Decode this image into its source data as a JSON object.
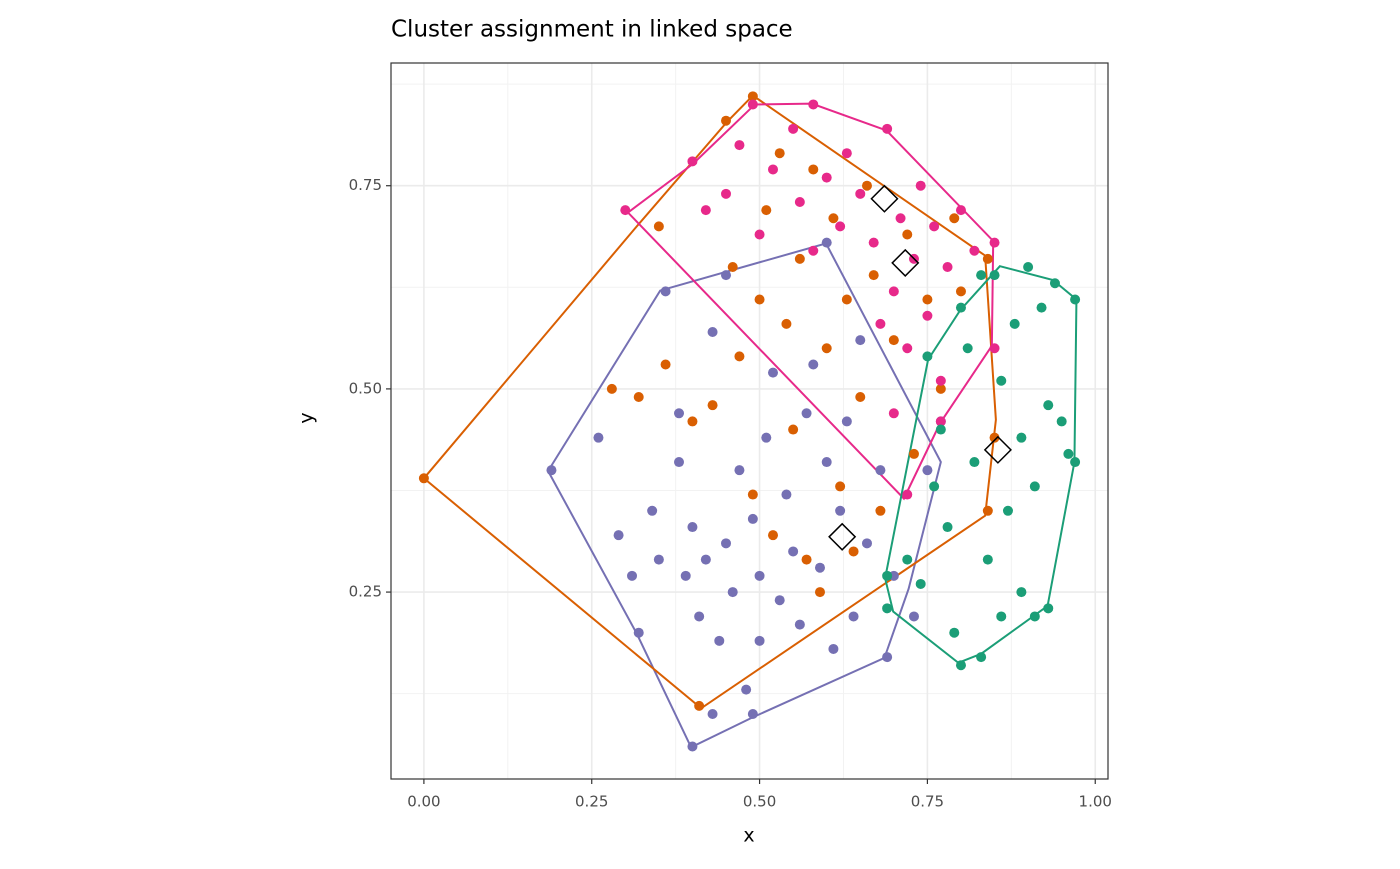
{
  "chart_data": {
    "type": "scatter",
    "title": "Cluster assignment in linked space",
    "x_label": "x",
    "y_label": "y",
    "xlim": [
      -0.049,
      1.019
    ],
    "ylim": [
      0.02,
      0.901
    ],
    "xticks": [
      {
        "value": 0,
        "label": "0.00"
      },
      0.25,
      {
        "value": 0.5,
        "label": "0.50"
      },
      0.75,
      {
        "value": 1,
        "label": "1.00"
      }
    ],
    "yticks": [
      0.25,
      {
        "value": 0.5,
        "label": "0.50"
      },
      0.75
    ],
    "xminor": [
      0.125,
      0.375,
      0.625,
      0.875
    ],
    "yminor": [
      0.125,
      0.375,
      0.625,
      0.875
    ],
    "grid": true,
    "series": [
      {
        "color": "#7570b3",
        "x": [
          0.19,
          0.26,
          0.29,
          0.31,
          0.32,
          0.34,
          0.35,
          0.36,
          0.38,
          0.38,
          0.39,
          0.4,
          0.4,
          0.41,
          0.42,
          0.43,
          0.43,
          0.44,
          0.45,
          0.45,
          0.46,
          0.47,
          0.48,
          0.49,
          0.49,
          0.5,
          0.5,
          0.51,
          0.52,
          0.53,
          0.54,
          0.55,
          0.56,
          0.57,
          0.58,
          0.59,
          0.6,
          0.6,
          0.61,
          0.62,
          0.63,
          0.64,
          0.65,
          0.66,
          0.68,
          0.69,
          0.7,
          0.73,
          0.75,
          0.77
        ],
        "y": [
          0.4,
          0.44,
          0.32,
          0.27,
          0.2,
          0.35,
          0.29,
          0.62,
          0.47,
          0.41,
          0.27,
          0.06,
          0.33,
          0.22,
          0.29,
          0.57,
          0.1,
          0.19,
          0.31,
          0.64,
          0.25,
          0.4,
          0.13,
          0.1,
          0.34,
          0.27,
          0.19,
          0.44,
          0.52,
          0.24,
          0.37,
          0.3,
          0.21,
          0.47,
          0.53,
          0.28,
          0.68,
          0.41,
          0.18,
          0.35,
          0.46,
          0.22,
          0.56,
          0.31,
          0.4,
          0.17,
          0.27,
          0.22,
          0.4,
          0.46
        ],
        "hull": {
          "x": [
            0.185,
            0.352,
            0.599,
            0.77,
            0.722,
            0.686,
            0.49,
            0.398,
            0.317
          ],
          "y": [
            0.399,
            0.621,
            0.679,
            0.41,
            0.254,
            0.169,
            0.096,
            0.059,
            0.199
          ]
        }
      },
      {
        "color": "#d95f02",
        "x": [
          0.0,
          0.28,
          0.32,
          0.36,
          0.35,
          0.4,
          0.41,
          0.43,
          0.45,
          0.46,
          0.47,
          0.49,
          0.49,
          0.5,
          0.51,
          0.52,
          0.53,
          0.54,
          0.55,
          0.56,
          0.57,
          0.58,
          0.59,
          0.6,
          0.61,
          0.62,
          0.63,
          0.64,
          0.65,
          0.66,
          0.67,
          0.68,
          0.7,
          0.72,
          0.73,
          0.75,
          0.77,
          0.79,
          0.8,
          0.84,
          0.85,
          0.84
        ],
        "y": [
          0.39,
          0.5,
          0.49,
          0.53,
          0.7,
          0.46,
          0.11,
          0.48,
          0.83,
          0.65,
          0.54,
          0.86,
          0.37,
          0.61,
          0.72,
          0.32,
          0.79,
          0.58,
          0.45,
          0.66,
          0.29,
          0.77,
          0.25,
          0.55,
          0.71,
          0.38,
          0.61,
          0.3,
          0.49,
          0.75,
          0.64,
          0.35,
          0.56,
          0.69,
          0.42,
          0.61,
          0.5,
          0.71,
          0.62,
          0.66,
          0.44,
          0.35
        ],
        "hull": {
          "x": [
            0.0,
            0.315,
            0.452,
            0.49,
            0.836,
            0.852,
            0.836,
            0.413
          ],
          "y": [
            0.39,
            0.698,
            0.829,
            0.861,
            0.664,
            0.462,
            0.344,
            0.107
          ]
        }
      },
      {
        "color": "#e7298a",
        "x": [
          0.3,
          0.4,
          0.42,
          0.45,
          0.47,
          0.49,
          0.5,
          0.52,
          0.55,
          0.56,
          0.58,
          0.58,
          0.6,
          0.62,
          0.63,
          0.65,
          0.67,
          0.69,
          0.7,
          0.71,
          0.72,
          0.73,
          0.74,
          0.75,
          0.76,
          0.77,
          0.78,
          0.8,
          0.82,
          0.85,
          0.85,
          0.77,
          0.72,
          0.7,
          0.68
        ],
        "y": [
          0.72,
          0.78,
          0.72,
          0.74,
          0.8,
          0.85,
          0.69,
          0.77,
          0.82,
          0.73,
          0.85,
          0.67,
          0.76,
          0.7,
          0.79,
          0.74,
          0.68,
          0.82,
          0.62,
          0.71,
          0.55,
          0.66,
          0.75,
          0.59,
          0.7,
          0.51,
          0.65,
          0.72,
          0.67,
          0.68,
          0.55,
          0.46,
          0.37,
          0.47,
          0.58
        ],
        "hull": {
          "x": [
            0.304,
            0.401,
            0.493,
            0.578,
            0.689,
            0.848,
            0.846,
            0.769,
            0.715
          ],
          "y": [
            0.717,
            0.777,
            0.85,
            0.851,
            0.818,
            0.682,
            0.553,
            0.458,
            0.365
          ]
        }
      },
      {
        "color": "#1b9e77",
        "x": [
          0.69,
          0.69,
          0.72,
          0.74,
          0.75,
          0.76,
          0.77,
          0.78,
          0.79,
          0.8,
          0.8,
          0.81,
          0.82,
          0.83,
          0.84,
          0.85,
          0.86,
          0.87,
          0.88,
          0.89,
          0.89,
          0.9,
          0.91,
          0.92,
          0.93,
          0.93,
          0.94,
          0.95,
          0.96,
          0.97,
          0.97,
          0.91,
          0.86,
          0.83
        ],
        "y": [
          0.23,
          0.27,
          0.29,
          0.26,
          0.54,
          0.38,
          0.45,
          0.33,
          0.2,
          0.16,
          0.6,
          0.55,
          0.41,
          0.17,
          0.29,
          0.64,
          0.51,
          0.35,
          0.58,
          0.25,
          0.44,
          0.65,
          0.38,
          0.6,
          0.23,
          0.48,
          0.63,
          0.46,
          0.42,
          0.61,
          0.41,
          0.22,
          0.22,
          0.64
        ],
        "hull": {
          "x": [
            0.858,
            0.937,
            0.972,
            0.969,
            0.929,
            0.83,
            0.796,
            0.699,
            0.687,
            0.751,
            0.799
          ],
          "y": [
            0.651,
            0.634,
            0.61,
            0.41,
            0.233,
            0.174,
            0.163,
            0.226,
            0.267,
            0.536,
            0.597
          ]
        }
      }
    ],
    "centroids": {
      "x": [
        0.686,
        0.717,
        0.855,
        0.623
      ],
      "y": [
        0.734,
        0.655,
        0.425,
        0.318
      ]
    }
  }
}
